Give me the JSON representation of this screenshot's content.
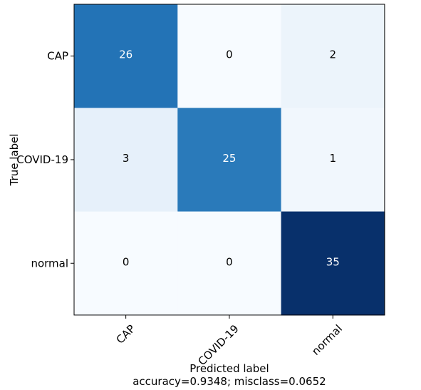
{
  "chart_data": {
    "type": "heatmap",
    "title": "",
    "xlabel": "Predicted label",
    "xlabel_line2": "accuracy=0.9348; misclass=0.0652",
    "ylabel": "True label",
    "row_labels": [
      "CAP",
      "COVID-19",
      "normal"
    ],
    "col_labels": [
      "CAP",
      "COVID-19",
      "normal"
    ],
    "matrix": [
      [
        26,
        0,
        2
      ],
      [
        3,
        25,
        1
      ],
      [
        0,
        0,
        35
      ]
    ],
    "vmin": 0,
    "vmax": 35,
    "colormap": "Blues",
    "grid": false,
    "accuracy": 0.9348,
    "misclass": 0.0652
  }
}
